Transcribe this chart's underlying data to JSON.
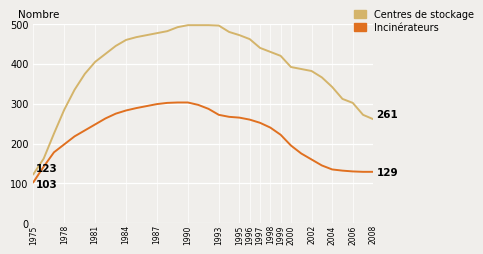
{
  "stockage_years": [
    1975,
    1976,
    1977,
    1978,
    1979,
    1980,
    1981,
    1982,
    1983,
    1984,
    1985,
    1986,
    1987,
    1988,
    1989,
    1990,
    1991,
    1992,
    1993,
    1994,
    1995,
    1996,
    1997,
    1998,
    1999,
    2000,
    2001,
    2002,
    2003,
    2004,
    2005,
    2006,
    2007,
    2008
  ],
  "stockage_values": [
    123,
    162,
    225,
    285,
    335,
    375,
    405,
    425,
    445,
    460,
    467,
    472,
    477,
    482,
    492,
    497,
    497,
    497,
    496,
    480,
    472,
    462,
    440,
    430,
    420,
    392,
    387,
    382,
    366,
    342,
    312,
    302,
    272,
    261
  ],
  "incinerateurs_years": [
    1975,
    1976,
    1977,
    1978,
    1979,
    1980,
    1981,
    1982,
    1983,
    1984,
    1985,
    1986,
    1987,
    1988,
    1989,
    1990,
    1991,
    1992,
    1993,
    1994,
    1995,
    1996,
    1997,
    1998,
    1999,
    2000,
    2001,
    2002,
    2003,
    2004,
    2005,
    2006,
    2007,
    2008
  ],
  "incinerateurs_values": [
    103,
    142,
    178,
    198,
    218,
    233,
    248,
    263,
    275,
    283,
    289,
    294,
    299,
    302,
    303,
    303,
    297,
    287,
    272,
    267,
    265,
    260,
    252,
    240,
    222,
    195,
    175,
    160,
    145,
    135,
    132,
    130,
    129,
    129
  ],
  "stockage_color": "#d4b46a",
  "incinerateurs_color": "#e07020",
  "ylabel": "Nombre",
  "ylim": [
    0,
    500
  ],
  "yticks": [
    0,
    100,
    200,
    300,
    400,
    500
  ],
  "x_display_ticks": [
    1975,
    1978,
    1981,
    1984,
    1987,
    1990,
    1993,
    1995,
    1996,
    1997,
    1998,
    1999,
    2000,
    2002,
    2004,
    2006,
    2008
  ],
  "legend_stockage": "Centres de stockage",
  "legend_incinerateurs": "Incinérateurs",
  "label_stockage_start": "123",
  "label_stockage_end": "261",
  "label_incin_start": "103",
  "label_incin_end": "129",
  "background_color": "#f0eeeb",
  "grid_color": "#ffffff"
}
